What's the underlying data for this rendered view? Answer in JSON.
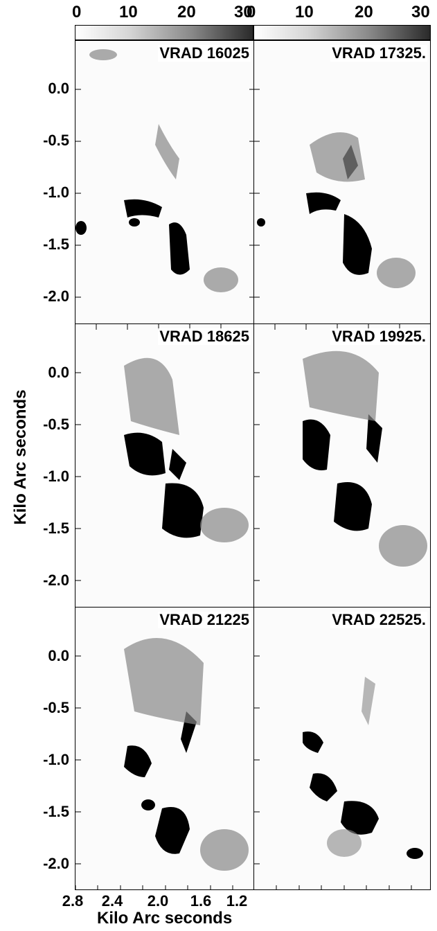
{
  "colorbar": {
    "ticks": [
      "0",
      "10",
      "20",
      "30"
    ],
    "shared_label": "30",
    "scale_min": 0,
    "scale_max": 30,
    "colors": [
      "#ffffff",
      "#d6d6d6",
      "#8a8a8a",
      "#2a2a2a"
    ]
  },
  "panels": [
    {
      "label": "VRAD 16025"
    },
    {
      "label": "VRAD 17325."
    },
    {
      "label": "VRAD 18625"
    },
    {
      "label": "VRAD 19925."
    },
    {
      "label": "VRAD 21225"
    },
    {
      "label": "VRAD 22525."
    }
  ],
  "y_axis": {
    "title": "Kilo Arc seconds",
    "ticks": [
      "0.0",
      "-0.5",
      "-1.0",
      "-1.5",
      "-2.0"
    ]
  },
  "x_axis": {
    "title": "Kilo Arc seconds",
    "ticks": [
      "2.8",
      "2.4",
      "2.0",
      "1.6",
      "1.2"
    ]
  }
}
